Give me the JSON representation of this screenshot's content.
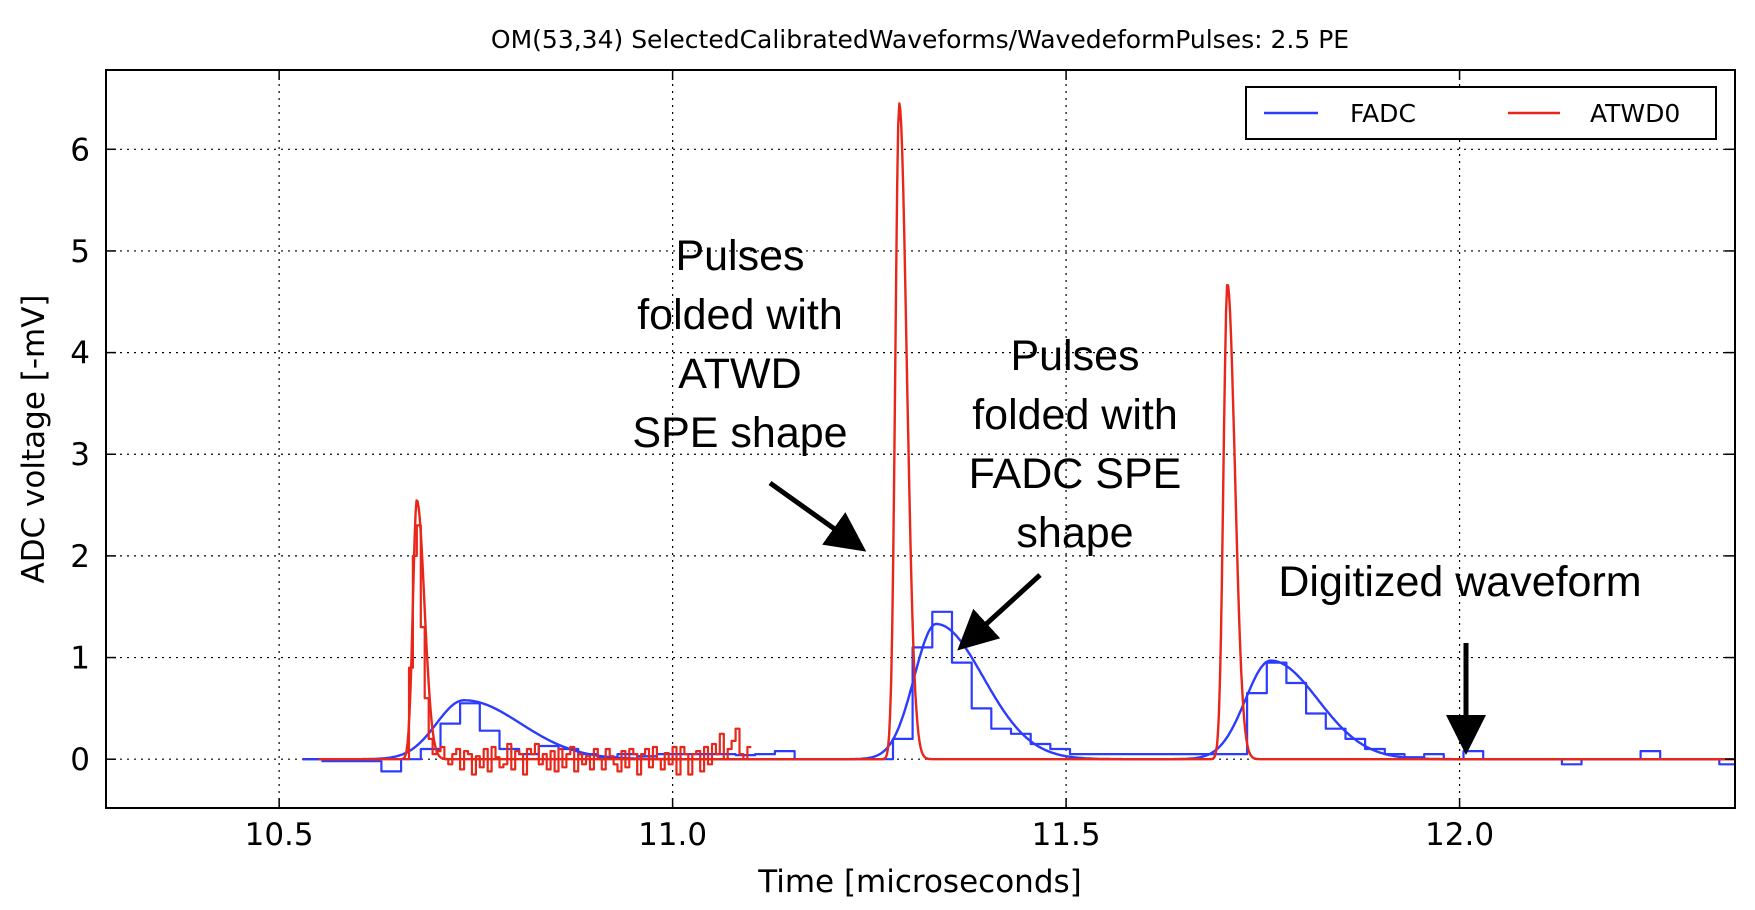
{
  "chart_data": {
    "type": "line",
    "title": "OM(53,34) SelectedCalibratedWaveforms/WavedeformPulses: 2.5 PE",
    "xlabel": "Time [microseconds]",
    "ylabel": "ADC voltage [-mV]",
    "xlim": [
      10.28,
      12.35
    ],
    "ylim": [
      -0.48,
      6.78
    ],
    "grid": true,
    "legend_position": "top-right",
    "xticks": [
      10.5,
      11.0,
      11.5,
      12.0
    ],
    "xtick_labels": [
      "10.5",
      "11.0",
      "11.5",
      "12.0"
    ],
    "yticks": [
      0,
      1,
      2,
      3,
      4,
      5,
      6
    ],
    "ytick_labels": [
      "0",
      "1",
      "2",
      "3",
      "4",
      "5",
      "6"
    ],
    "series": [
      {
        "name": "FADC",
        "color": "#2b3cff",
        "kind": "fitted-pulse-curve",
        "pulses": [
          {
            "t0": 10.735,
            "amp": 0.58,
            "rise": 0.035,
            "decay": 0.06
          },
          {
            "t0": 11.335,
            "amp": 1.33,
            "rise": 0.028,
            "decay": 0.05
          },
          {
            "t0": 11.76,
            "amp": 0.97,
            "rise": 0.032,
            "decay": 0.05
          }
        ],
        "x_range": [
          10.53,
          12.35
        ]
      },
      {
        "name": "FADC digitized waveform",
        "color": "#2b3cff",
        "kind": "step",
        "x": [
          10.53,
          10.555,
          10.58,
          10.605,
          10.63,
          10.655,
          10.68,
          10.705,
          10.73,
          10.755,
          10.78,
          10.805,
          10.83,
          10.855,
          10.88,
          10.905,
          10.93,
          10.955,
          10.98,
          11.005,
          11.03,
          11.055,
          11.08,
          11.105,
          11.13,
          11.155,
          11.18,
          11.205,
          11.23,
          11.255,
          11.28,
          11.305,
          11.33,
          11.355,
          11.38,
          11.405,
          11.43,
          11.455,
          11.48,
          11.505,
          11.53,
          11.555,
          11.58,
          11.605,
          11.63,
          11.655,
          11.68,
          11.705,
          11.73,
          11.755,
          11.78,
          11.805,
          11.83,
          11.855,
          11.88,
          11.905,
          11.93,
          11.955,
          11.98,
          12.005,
          12.03,
          12.055,
          12.08,
          12.105,
          12.13,
          12.155,
          12.18,
          12.205,
          12.23,
          12.255,
          12.28,
          12.305,
          12.33,
          12.35
        ],
        "y": [
          0.0,
          -0.02,
          -0.02,
          -0.02,
          -0.12,
          0.0,
          0.1,
          0.35,
          0.55,
          0.28,
          0.1,
          0.05,
          0.13,
          0.1,
          0.05,
          0.02,
          0.05,
          0.03,
          0.05,
          0.05,
          0.05,
          0.05,
          0.04,
          0.05,
          0.08,
          0.0,
          0.0,
          0.0,
          0.0,
          0.0,
          0.2,
          1.1,
          1.45,
          0.95,
          0.5,
          0.3,
          0.25,
          0.15,
          0.1,
          0.05,
          0.05,
          0.05,
          0.05,
          0.05,
          0.05,
          0.05,
          0.05,
          0.05,
          0.65,
          0.95,
          0.75,
          0.45,
          0.3,
          0.2,
          0.1,
          0.05,
          0.02,
          0.05,
          0.0,
          0.08,
          0.0,
          0.0,
          0.0,
          0.0,
          -0.05,
          0.0,
          0.0,
          0.0,
          0.08,
          0.0,
          0.0,
          0.0,
          -0.05,
          0.0
        ]
      },
      {
        "name": "ATWD0",
        "color": "#e8271a",
        "kind": "fitted-pulse-curve",
        "pulses": [
          {
            "t0": 10.675,
            "amp": 2.55,
            "rise": 0.005,
            "decay": 0.008
          },
          {
            "t0": 11.288,
            "amp": 6.45,
            "rise": 0.005,
            "decay": 0.008
          },
          {
            "t0": 11.705,
            "amp": 4.68,
            "rise": 0.005,
            "decay": 0.008
          }
        ],
        "x_range": [
          10.55,
          12.35
        ]
      },
      {
        "name": "ATWD0 digitized waveform",
        "color": "#e8271a",
        "kind": "step",
        "x": [
          10.66,
          10.665,
          10.67,
          10.675,
          10.68,
          10.685,
          10.69,
          10.695,
          10.7,
          10.705,
          10.71,
          10.715,
          10.72,
          10.725,
          10.73,
          10.735,
          10.74,
          10.745,
          10.75,
          10.755,
          10.76,
          10.765,
          10.77,
          10.775,
          10.78,
          10.785,
          10.79,
          10.795,
          10.8,
          10.805,
          10.81,
          10.815,
          10.82,
          10.825,
          10.83,
          10.835,
          10.84,
          10.845,
          10.85,
          10.855,
          10.86,
          10.865,
          10.87,
          10.875,
          10.88,
          10.885,
          10.89,
          10.895,
          10.9,
          10.905,
          10.91,
          10.915,
          10.92,
          10.925,
          10.93,
          10.935,
          10.94,
          10.945,
          10.95,
          10.955,
          10.96,
          10.965,
          10.97,
          10.975,
          10.98,
          10.985,
          10.99,
          10.995,
          11.0,
          11.005,
          11.01,
          11.015,
          11.02,
          11.025,
          11.03,
          11.035,
          11.04,
          11.045,
          11.05,
          11.055,
          11.06,
          11.065,
          11.07,
          11.075,
          11.08,
          11.085,
          11.09,
          11.095,
          11.1
        ],
        "y": [
          0.0,
          0.9,
          2.0,
          2.3,
          1.3,
          0.6,
          0.2,
          0.05,
          0.08,
          0.12,
          0.0,
          -0.05,
          0.05,
          0.1,
          -0.1,
          0.08,
          0.05,
          -0.15,
          0.03,
          -0.08,
          0.1,
          -0.12,
          0.12,
          0.02,
          -0.08,
          -0.05,
          0.15,
          -0.1,
          0.08,
          0.05,
          -0.15,
          0.1,
          0.05,
          0.15,
          -0.05,
          0.05,
          -0.1,
          0.08,
          -0.12,
          0.1,
          -0.08,
          0.05,
          0.12,
          -0.12,
          0.05,
          -0.05,
          0.03,
          -0.1,
          0.1,
          0.0,
          -0.1,
          0.1,
          0.03,
          -0.05,
          -0.12,
          0.08,
          -0.08,
          0.1,
          0.05,
          -0.15,
          0.05,
          0.1,
          -0.08,
          0.12,
          0.0,
          -0.1,
          0.06,
          -0.05,
          0.12,
          -0.15,
          0.12,
          0.05,
          -0.15,
          0.05,
          0.08,
          -0.12,
          0.12,
          -0.05,
          0.15,
          0.05,
          0.25,
          0.0,
          0.1,
          0.18,
          0.3,
          0.05,
          0.0,
          0.12,
          0.0
        ]
      }
    ],
    "legend": [
      {
        "label": "FADC",
        "color": "#2b3cff"
      },
      {
        "label": "ATWD0",
        "color": "#e8271a"
      }
    ],
    "annotations": [
      {
        "lines": [
          "Pulses",
          "folded with",
          "ATWD",
          "SPE shape"
        ]
      },
      {
        "lines": [
          "Pulses",
          "folded with",
          "FADC SPE",
          "shape"
        ]
      },
      {
        "lines": [
          "Digitized waveform"
        ]
      }
    ]
  }
}
